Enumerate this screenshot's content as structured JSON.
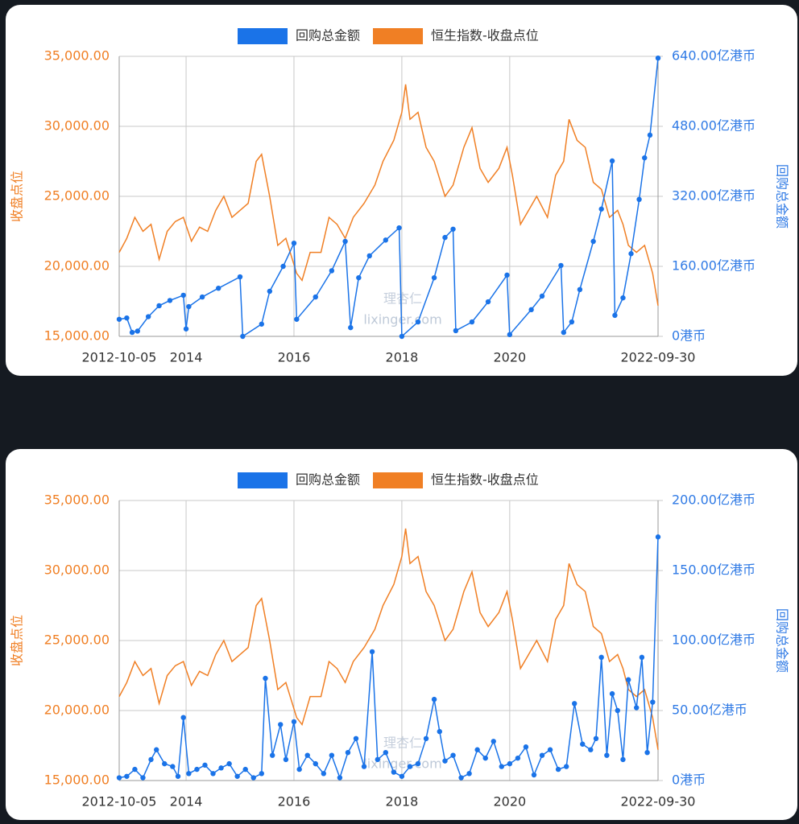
{
  "chart_data": [
    {
      "type": "line",
      "ylabel": "收盘点位",
      "y2label": "回购总金额",
      "watermark": [
        "理杏仁",
        "lixinger.com"
      ],
      "xlim": [
        2012.76,
        2022.75
      ],
      "xticks": [
        {
          "value": 2012.76,
          "label": "2012-10-05"
        },
        2014,
        2016,
        2018,
        2020,
        {
          "value": 2022.75,
          "label": "2022-09-30"
        }
      ],
      "ylim": [
        15000,
        35000
      ],
      "yticks": [
        {
          "value": 15000,
          "label": "15,000.00"
        },
        {
          "value": 20000,
          "label": "20,000.00"
        },
        {
          "value": 25000,
          "label": "25,000.00"
        },
        {
          "value": 30000,
          "label": "30,000.00"
        },
        {
          "value": 35000,
          "label": "35,000.00"
        }
      ],
      "y2lim": [
        0,
        640
      ],
      "y2ticks": [
        {
          "value": 0,
          "label": "0港币"
        },
        {
          "value": 160,
          "label": "160.00亿港币"
        },
        {
          "value": 320,
          "label": "320.00亿港币"
        },
        {
          "value": 480,
          "label": "480.00亿港币"
        },
        {
          "value": 640,
          "label": "640.00亿港币"
        }
      ],
      "grid": true,
      "series": [
        {
          "name": "回购总金额",
          "color": "#1a73e8",
          "axis": "y2",
          "markers": true,
          "x": [
            2012.76,
            2012.9,
            2013.0,
            2013.1,
            2013.3,
            2013.5,
            2013.7,
            2013.95,
            2014.0,
            2014.05,
            2014.3,
            2014.6,
            2015.0,
            2015.05,
            2015.4,
            2015.55,
            2015.8,
            2016.0,
            2016.05,
            2016.4,
            2016.7,
            2016.95,
            2017.05,
            2017.2,
            2017.4,
            2017.7,
            2017.95,
            2018.0,
            2018.3,
            2018.6,
            2018.8,
            2018.95,
            2019.0,
            2019.3,
            2019.6,
            2019.95,
            2020.0,
            2020.4,
            2020.6,
            2020.95,
            2021.0,
            2021.15,
            2021.3,
            2021.55,
            2021.7,
            2021.9,
            2021.95,
            2022.1,
            2022.25,
            2022.4,
            2022.5,
            2022.6,
            2022.75
          ],
          "values": [
            39,
            42,
            9,
            12,
            45,
            70,
            82,
            94,
            17,
            68,
            90,
            110,
            136,
            0,
            28,
            103,
            160,
            213,
            39,
            90,
            150,
            217,
            20,
            134,
            184,
            220,
            248,
            0,
            33,
            134,
            226,
            245,
            13,
            33,
            79,
            140,
            4,
            61,
            92,
            162,
            9,
            33,
            107,
            217,
            291,
            401,
            48,
            88,
            189,
            313,
            408,
            460,
            636
          ]
        },
        {
          "name": "恒生指数-收盘点位",
          "color": "#f07f24",
          "axis": "y",
          "x": [
            2012.76,
            2012.9,
            2013.05,
            2013.2,
            2013.35,
            2013.5,
            2013.65,
            2013.8,
            2013.95,
            2014.1,
            2014.25,
            2014.4,
            2014.55,
            2014.7,
            2014.85,
            2015.0,
            2015.15,
            2015.3,
            2015.4,
            2015.55,
            2015.7,
            2015.85,
            2016.05,
            2016.15,
            2016.3,
            2016.5,
            2016.65,
            2016.8,
            2016.95,
            2017.1,
            2017.3,
            2017.5,
            2017.65,
            2017.85,
            2018.0,
            2018.07,
            2018.15,
            2018.3,
            2018.45,
            2018.6,
            2018.8,
            2018.95,
            2019.15,
            2019.3,
            2019.45,
            2019.6,
            2019.8,
            2019.95,
            2020.05,
            2020.2,
            2020.35,
            2020.5,
            2020.7,
            2020.85,
            2021.0,
            2021.1,
            2021.25,
            2021.4,
            2021.55,
            2021.7,
            2021.85,
            2022.0,
            2022.1,
            2022.2,
            2022.35,
            2022.5,
            2022.65,
            2022.75
          ],
          "values": [
            21000,
            22000,
            23500,
            22500,
            23000,
            20500,
            22500,
            23200,
            23500,
            21800,
            22800,
            22500,
            24000,
            25000,
            23500,
            24000,
            24500,
            27500,
            28000,
            25000,
            21500,
            22000,
            19500,
            19000,
            21000,
            21000,
            23500,
            23000,
            22000,
            23500,
            24500,
            25800,
            27500,
            29000,
            31000,
            33000,
            30500,
            31000,
            28500,
            27500,
            25000,
            25800,
            28500,
            29900,
            27000,
            26000,
            27000,
            28500,
            26500,
            23000,
            24000,
            25000,
            23500,
            26500,
            27500,
            30500,
            29000,
            28500,
            26000,
            25500,
            23500,
            24000,
            23000,
            21500,
            21000,
            21500,
            19500,
            17200
          ]
        }
      ]
    },
    {
      "type": "line",
      "ylabel": "收盘点位",
      "y2label": "回购总金额",
      "watermark": [
        "理杏仁",
        "lixinger.com"
      ],
      "xlim": [
        2012.76,
        2022.75
      ],
      "xticks": [
        {
          "value": 2012.76,
          "label": "2012-10-05"
        },
        2014,
        2016,
        2018,
        2020,
        {
          "value": 2022.75,
          "label": "2022-09-30"
        }
      ],
      "ylim": [
        15000,
        35000
      ],
      "yticks": [
        {
          "value": 15000,
          "label": "15,000.00"
        },
        {
          "value": 20000,
          "label": "20,000.00"
        },
        {
          "value": 25000,
          "label": "25,000.00"
        },
        {
          "value": 30000,
          "label": "30,000.00"
        },
        {
          "value": 35000,
          "label": "35,000.00"
        }
      ],
      "y2lim": [
        0,
        200
      ],
      "y2ticks": [
        {
          "value": 0,
          "label": "0港币"
        },
        {
          "value": 50,
          "label": "50.00亿港币"
        },
        {
          "value": 100,
          "label": "100.00亿港币"
        },
        {
          "value": 150,
          "label": "150.00亿港币"
        },
        {
          "value": 200,
          "label": "200.00亿港币"
        }
      ],
      "grid": true,
      "series": [
        {
          "name": "回购总金额",
          "color": "#1a73e8",
          "axis": "y2",
          "markers": true,
          "x": [
            2012.76,
            2012.9,
            2013.05,
            2013.2,
            2013.35,
            2013.45,
            2013.6,
            2013.75,
            2013.85,
            2013.95,
            2014.05,
            2014.2,
            2014.35,
            2014.5,
            2014.65,
            2014.8,
            2014.95,
            2015.1,
            2015.25,
            2015.4,
            2015.47,
            2015.6,
            2015.75,
            2015.85,
            2016.0,
            2016.1,
            2016.25,
            2016.4,
            2016.55,
            2016.7,
            2016.85,
            2017.0,
            2017.15,
            2017.3,
            2017.45,
            2017.55,
            2017.7,
            2017.85,
            2018.0,
            2018.15,
            2018.3,
            2018.45,
            2018.6,
            2018.7,
            2018.8,
            2018.95,
            2019.1,
            2019.25,
            2019.4,
            2019.55,
            2019.7,
            2019.85,
            2020.0,
            2020.15,
            2020.3,
            2020.45,
            2020.6,
            2020.75,
            2020.9,
            2021.05,
            2021.2,
            2021.35,
            2021.5,
            2021.6,
            2021.7,
            2021.8,
            2021.9,
            2022.0,
            2022.1,
            2022.2,
            2022.35,
            2022.45,
            2022.55,
            2022.65,
            2022.75
          ],
          "values": [
            2,
            3,
            8,
            2,
            15,
            22,
            12,
            10,
            3,
            45,
            5,
            8,
            11,
            5,
            9,
            12,
            3,
            8,
            2,
            5,
            73,
            18,
            40,
            15,
            42,
            8,
            18,
            12,
            5,
            18,
            2,
            20,
            30,
            10,
            92,
            15,
            20,
            6,
            3,
            10,
            12,
            30,
            58,
            35,
            14,
            18,
            2,
            5,
            22,
            16,
            28,
            10,
            12,
            16,
            24,
            4,
            18,
            22,
            8,
            10,
            55,
            26,
            22,
            30,
            88,
            18,
            62,
            50,
            15,
            72,
            52,
            88,
            20,
            56,
            174
          ]
        },
        {
          "name": "恒生指数-收盘点位",
          "color": "#f07f24",
          "axis": "y",
          "x": [
            2012.76,
            2012.9,
            2013.05,
            2013.2,
            2013.35,
            2013.5,
            2013.65,
            2013.8,
            2013.95,
            2014.1,
            2014.25,
            2014.4,
            2014.55,
            2014.7,
            2014.85,
            2015.0,
            2015.15,
            2015.3,
            2015.4,
            2015.55,
            2015.7,
            2015.85,
            2016.05,
            2016.15,
            2016.3,
            2016.5,
            2016.65,
            2016.8,
            2016.95,
            2017.1,
            2017.3,
            2017.5,
            2017.65,
            2017.85,
            2018.0,
            2018.07,
            2018.15,
            2018.3,
            2018.45,
            2018.6,
            2018.8,
            2018.95,
            2019.15,
            2019.3,
            2019.45,
            2019.6,
            2019.8,
            2019.95,
            2020.05,
            2020.2,
            2020.35,
            2020.5,
            2020.7,
            2020.85,
            2021.0,
            2021.1,
            2021.25,
            2021.4,
            2021.55,
            2021.7,
            2021.85,
            2022.0,
            2022.1,
            2022.2,
            2022.35,
            2022.5,
            2022.65,
            2022.75
          ],
          "values": [
            21000,
            22000,
            23500,
            22500,
            23000,
            20500,
            22500,
            23200,
            23500,
            21800,
            22800,
            22500,
            24000,
            25000,
            23500,
            24000,
            24500,
            27500,
            28000,
            25000,
            21500,
            22000,
            19500,
            19000,
            21000,
            21000,
            23500,
            23000,
            22000,
            23500,
            24500,
            25800,
            27500,
            29000,
            31000,
            33000,
            30500,
            31000,
            28500,
            27500,
            25000,
            25800,
            28500,
            29900,
            27000,
            26000,
            27000,
            28500,
            26500,
            23000,
            24000,
            25000,
            23500,
            26500,
            27500,
            30500,
            29000,
            28500,
            26000,
            25500,
            23500,
            24000,
            23000,
            21500,
            21000,
            21500,
            19500,
            17200
          ]
        }
      ]
    }
  ]
}
